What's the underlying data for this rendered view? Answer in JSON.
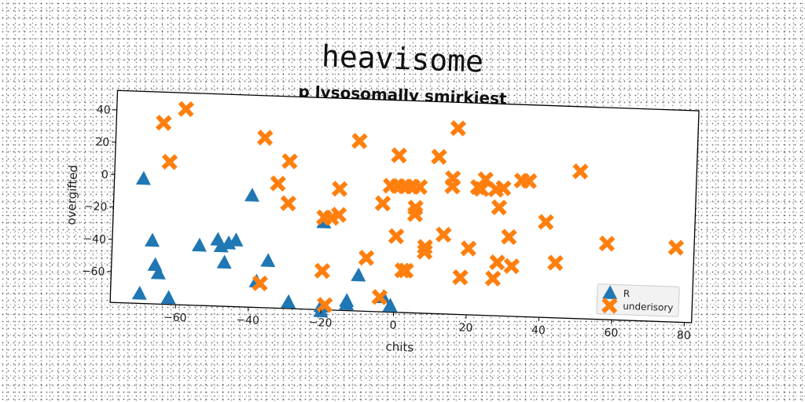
{
  "chart_data": {
    "type": "scatter",
    "title": "heavisome",
    "subtitle": "p lysosomally smirkiest",
    "xlabel": "chits",
    "ylabel": "overgifted",
    "xlim": [
      -78,
      82
    ],
    "ylim": [
      -79,
      52
    ],
    "xticks": [
      -60,
      -40,
      -20,
      0,
      20,
      40,
      60,
      80
    ],
    "yticks": [
      -60,
      -40,
      -20,
      0,
      20,
      40
    ],
    "grid": false,
    "legend_position": "bottom-right",
    "series": [
      {
        "name": "R",
        "marker": "triangle",
        "color": "#1f77b4",
        "points": [
          [
            -70,
            -2
          ],
          [
            -67,
            -40
          ],
          [
            -66,
            -55
          ],
          [
            -65,
            -60
          ],
          [
            -70,
            -73
          ],
          [
            -62,
            -75
          ],
          [
            -54,
            -42
          ],
          [
            -49,
            -38
          ],
          [
            -48,
            -42
          ],
          [
            -46,
            -40
          ],
          [
            -44,
            -38
          ],
          [
            -47,
            -52
          ],
          [
            -40,
            -10
          ],
          [
            -38,
            -63
          ],
          [
            -35,
            -50
          ],
          [
            -29,
            -75
          ],
          [
            -20,
            -25
          ],
          [
            -20,
            -77
          ],
          [
            -20,
            -80
          ],
          [
            -13,
            -73
          ],
          [
            -13,
            -75
          ],
          [
            -10,
            -57
          ],
          [
            -3,
            -70
          ],
          [
            -1,
            -75
          ]
        ]
      },
      {
        "name": "underisory",
        "marker": "x",
        "color": "#ff7f0e",
        "points": [
          [
            -65,
            33
          ],
          [
            -59,
            42
          ],
          [
            -63,
            9
          ],
          [
            -37,
            26
          ],
          [
            -30,
            12
          ],
          [
            -33,
            -2
          ],
          [
            -30,
            -14
          ],
          [
            -37,
            -64
          ],
          [
            -20,
            -22
          ],
          [
            -18,
            -22
          ],
          [
            -16,
            -20
          ],
          [
            -16,
            -4
          ],
          [
            -20,
            -55
          ],
          [
            -19,
            -76
          ],
          [
            -11,
            26
          ],
          [
            -8,
            -46
          ],
          [
            -4,
            -12
          ],
          [
            -4,
            -70
          ],
          [
            -2,
            -1
          ],
          [
            0,
            18
          ],
          [
            0,
            -1
          ],
          [
            2,
            -1
          ],
          [
            0,
            -32
          ],
          [
            4,
            -1
          ],
          [
            6,
            -1
          ],
          [
            5,
            -14
          ],
          [
            5,
            -18
          ],
          [
            2,
            -53
          ],
          [
            3,
            -53
          ],
          [
            8,
            -38
          ],
          [
            8,
            -41
          ],
          [
            11,
            18
          ],
          [
            13,
            -30
          ],
          [
            15,
            5
          ],
          [
            15,
            0
          ],
          [
            16,
            36
          ],
          [
            18,
            -56
          ],
          [
            20,
            -38
          ],
          [
            22,
            0
          ],
          [
            23,
            -1
          ],
          [
            24,
            5
          ],
          [
            27,
            -1
          ],
          [
            27,
            -56
          ],
          [
            28,
            -12
          ],
          [
            29,
            0
          ],
          [
            28,
            -46
          ],
          [
            31,
            -30
          ],
          [
            32,
            -48
          ],
          [
            34,
            5
          ],
          [
            36,
            5
          ],
          [
            41,
            -20
          ],
          [
            44,
            -45
          ],
          [
            50,
            12
          ],
          [
            58,
            -32
          ],
          [
            77,
            -33
          ]
        ]
      }
    ]
  }
}
